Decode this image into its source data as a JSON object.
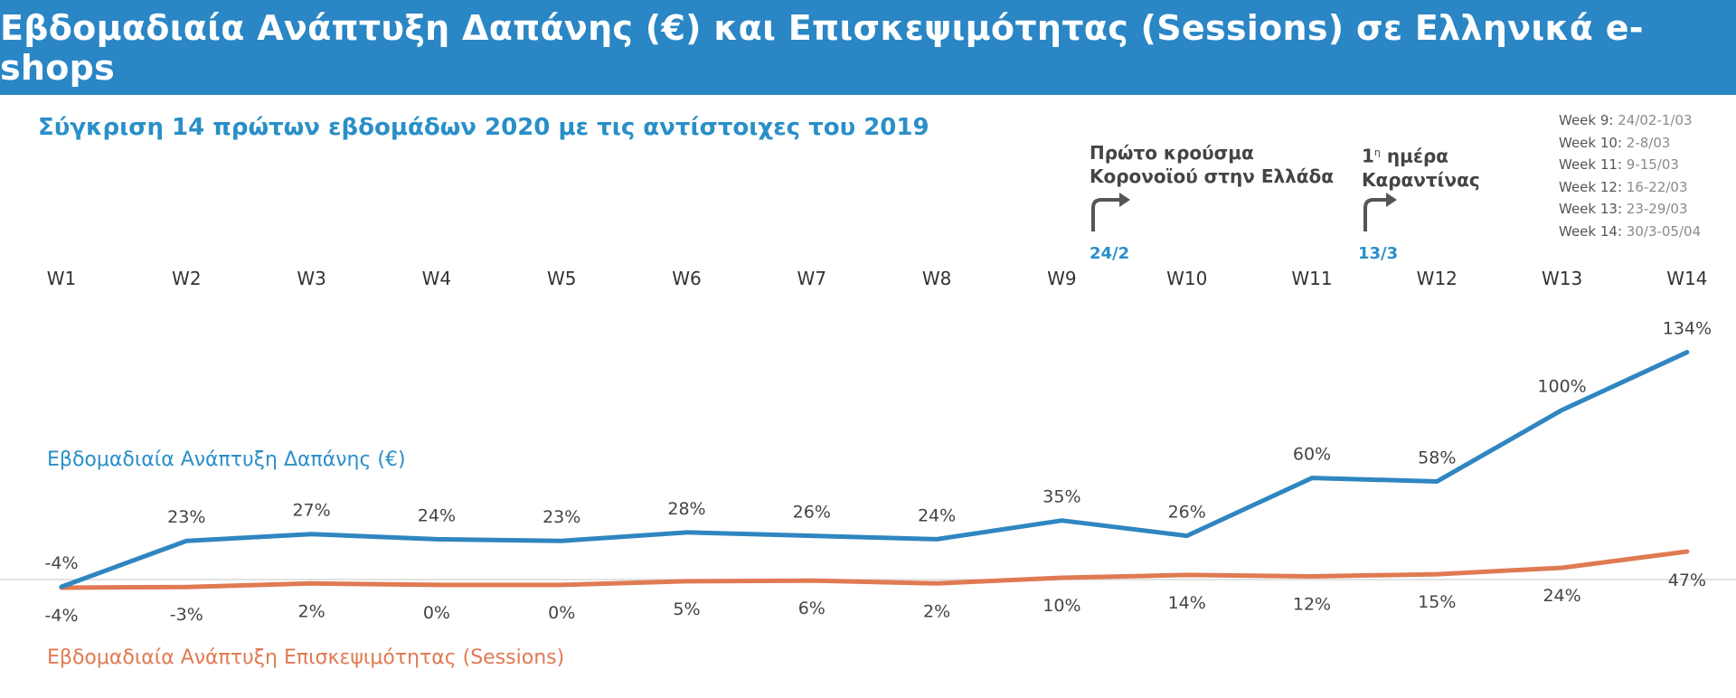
{
  "header": {
    "title": "Εβδομαδιαία Ανάπτυξη Δαπάνης (€) και Επισκεψιμότητας (Sessions) σε Ελληνικά e-shops"
  },
  "subtitle": "Σύγκριση 14 πρώτων εβδομάδων 2020 με τις αντίστοιχες του 2019",
  "week_legend": [
    {
      "week": "Week 9:",
      "range": "24/02-1/03"
    },
    {
      "week": "Week 10:",
      "range": "2-8/03"
    },
    {
      "week": "Week 11:",
      "range": "9-15/03"
    },
    {
      "week": "Week 12:",
      "range": "16-22/03"
    },
    {
      "week": "Week 13:",
      "range": "23-29/03"
    },
    {
      "week": "Week 14:",
      "range": "30/3-05/04"
    }
  ],
  "events": [
    {
      "line1": "Πρώτο κρούσμα",
      "line2": "Κορονοϊού στην Ελλάδα",
      "date": "24/2"
    },
    {
      "line1": "1η ημέρα",
      "line2": "Καραντίνας",
      "date": "13/3"
    }
  ],
  "colors": {
    "spend": "#2f86c0",
    "sessions": "#e07a52",
    "header": "#2a86c5",
    "icon": "#555555"
  },
  "icons": {
    "event_marker": "turn-up-right-arrow-icon"
  },
  "chart_data": {
    "type": "line",
    "categories": [
      "W1",
      "W2",
      "W3",
      "W4",
      "W5",
      "W6",
      "W7",
      "W8",
      "W9",
      "W10",
      "W11",
      "W12",
      "W13",
      "W14"
    ],
    "series": [
      {
        "name": "Εβδομαδιαία Ανάπτυξη Δαπάνης (€)",
        "values": [
          -4,
          23,
          27,
          24,
          23,
          28,
          26,
          24,
          35,
          26,
          60,
          58,
          100,
          134
        ]
      },
      {
        "name": "Εβδομαδιαία Ανάπτυξη Επισκεψιμότητας (Sessions)",
        "values": [
          -4,
          -3,
          2,
          0,
          0,
          5,
          6,
          2,
          10,
          14,
          12,
          15,
          24,
          47
        ]
      }
    ],
    "labels_spend": [
      "-4%",
      "23%",
      "27%",
      "24%",
      "23%",
      "28%",
      "26%",
      "24%",
      "35%",
      "26%",
      "60%",
      "58%",
      "100%",
      "134%"
    ],
    "labels_sessions": [
      "-4%",
      "-3%",
      "2%",
      "0%",
      "0%",
      "5%",
      "6%",
      "2%",
      "10%",
      "14%",
      "12%",
      "15%",
      "24%",
      "47%"
    ],
    "ylim": [
      -4,
      134
    ],
    "grid": false
  }
}
